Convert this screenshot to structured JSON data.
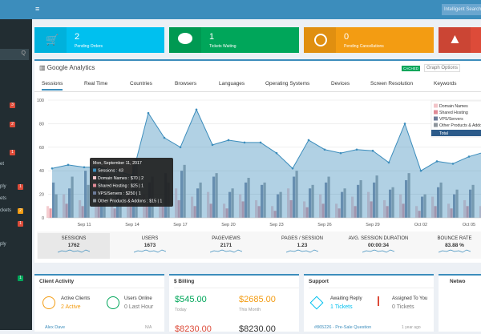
{
  "topbar": {
    "search": "Intelligent Search"
  },
  "sidebar": {
    "items": [
      "et",
      "ply",
      "ets",
      "ckets",
      "ply"
    ],
    "badges": [
      "3",
      "2",
      "1",
      "1",
      "2",
      "1",
      "1"
    ]
  },
  "tiles": [
    {
      "value": "2",
      "label": "Pending Orders"
    },
    {
      "value": "1",
      "label": "Tickets Waiting"
    },
    {
      "value": "0",
      "label": "Pending Cancellations"
    }
  ],
  "analytics": {
    "title": "Google Analytics",
    "cached": "CACHED",
    "options": "Graph Options",
    "tabs": [
      "Sessions",
      "Real Time",
      "Countries",
      "Browsers",
      "Languages",
      "Operating Systems",
      "Devices",
      "Screen Resolution",
      "Keywords"
    ],
    "stats": [
      {
        "label": "SESSIONS",
        "value": "1762"
      },
      {
        "label": "USERS",
        "value": "1673"
      },
      {
        "label": "PAGEVIEWS",
        "value": "2171"
      },
      {
        "label": "PAGES / SESSION",
        "value": "1.23"
      },
      {
        "label": "AVG. SESSION DURATION",
        "value": "00:00:34"
      },
      {
        "label": "BOUNCE RATE",
        "value": "83.88 %"
      }
    ]
  },
  "chart_data": {
    "type": "bar-line",
    "categories": [
      null,
      null,
      "Sep 11",
      null,
      null,
      "Sep 14",
      null,
      null,
      "Sep 17",
      null,
      null,
      "Sep 20",
      null,
      null,
      "Sep 23",
      null,
      null,
      "Sep 26",
      null,
      null,
      "Sep 29",
      null,
      null,
      "Oct 02",
      null,
      null,
      "Oct 05",
      null
    ],
    "ylim": [
      0,
      100
    ],
    "yticks": [
      0,
      20,
      40,
      60,
      80,
      100
    ],
    "grid": true,
    "line": {
      "name": "Sessions",
      "color": "#3c8dbc",
      "values": [
        42,
        45,
        43,
        43,
        40,
        36,
        89,
        68,
        60,
        92,
        62,
        66,
        64,
        64,
        55,
        42,
        66,
        58,
        55,
        58,
        57,
        47,
        80,
        40,
        48,
        46,
        52,
        56
      ]
    },
    "series": [
      {
        "name": "Domain Names",
        "color": "#f2c4c8",
        "values": [
          10,
          20,
          15,
          25,
          12,
          30,
          20,
          15,
          25,
          18,
          22,
          12,
          20,
          15,
          10,
          25,
          14,
          20,
          12,
          18,
          22,
          15,
          20,
          10,
          18,
          12,
          15,
          10
        ]
      },
      {
        "name": "Shared Hosting",
        "color": "#e08a96",
        "values": [
          8,
          12,
          10,
          15,
          8,
          20,
          12,
          10,
          15,
          10,
          12,
          8,
          14,
          10,
          6,
          15,
          9,
          12,
          8,
          10,
          14,
          10,
          12,
          6,
          10,
          8,
          10,
          6
        ]
      },
      {
        "name": "VPS/Servers",
        "color": "#6d7b99",
        "values": [
          30,
          25,
          40,
          35,
          20,
          45,
          30,
          38,
          40,
          25,
          35,
          22,
          30,
          28,
          20,
          35,
          25,
          30,
          22,
          28,
          30,
          24,
          32,
          18,
          26,
          20,
          24,
          18
        ]
      },
      {
        "name": "Other Products & Addons",
        "color": "#8e959c",
        "values": [
          20,
          35,
          28,
          40,
          25,
          50,
          35,
          30,
          45,
          30,
          38,
          25,
          34,
          30,
          22,
          40,
          28,
          35,
          25,
          32,
          36,
          26,
          38,
          20,
          30,
          24,
          28,
          20
        ]
      }
    ],
    "legend_total": "Total",
    "tooltip": [
      "Mon, September 11, 2017",
      "Sessions : 43",
      "Domain Names : $70 | 2",
      "Shared Hosting : $25 | 1",
      "VPS/Servers : $250 | 1",
      "Other Products & Addons : $15 | 1"
    ]
  },
  "panels": {
    "client": {
      "title": "Client Activity",
      "a_label": "Active Clients",
      "a_value": "2 Active",
      "b_label": "Users Online",
      "b_value": "0 Last Hour",
      "row": "Alex Dave",
      "row_right": "N/A"
    },
    "billing": {
      "title": "Billing",
      "today": "$545.00",
      "today_label": "Today",
      "month": "$2685.00",
      "month_label": "This Month",
      "c": "$8230.00",
      "d": "$8230.00"
    },
    "support": {
      "title": "Support",
      "a_label": "Awaiting Reply",
      "a_value": "1 Tickets",
      "b_label": "Assigned To You",
      "b_value": "0 Tickets",
      "row": "#865226 - Pre-Sale Question",
      "row_right": "1 year ago"
    },
    "network": {
      "title": "Netwo"
    }
  }
}
